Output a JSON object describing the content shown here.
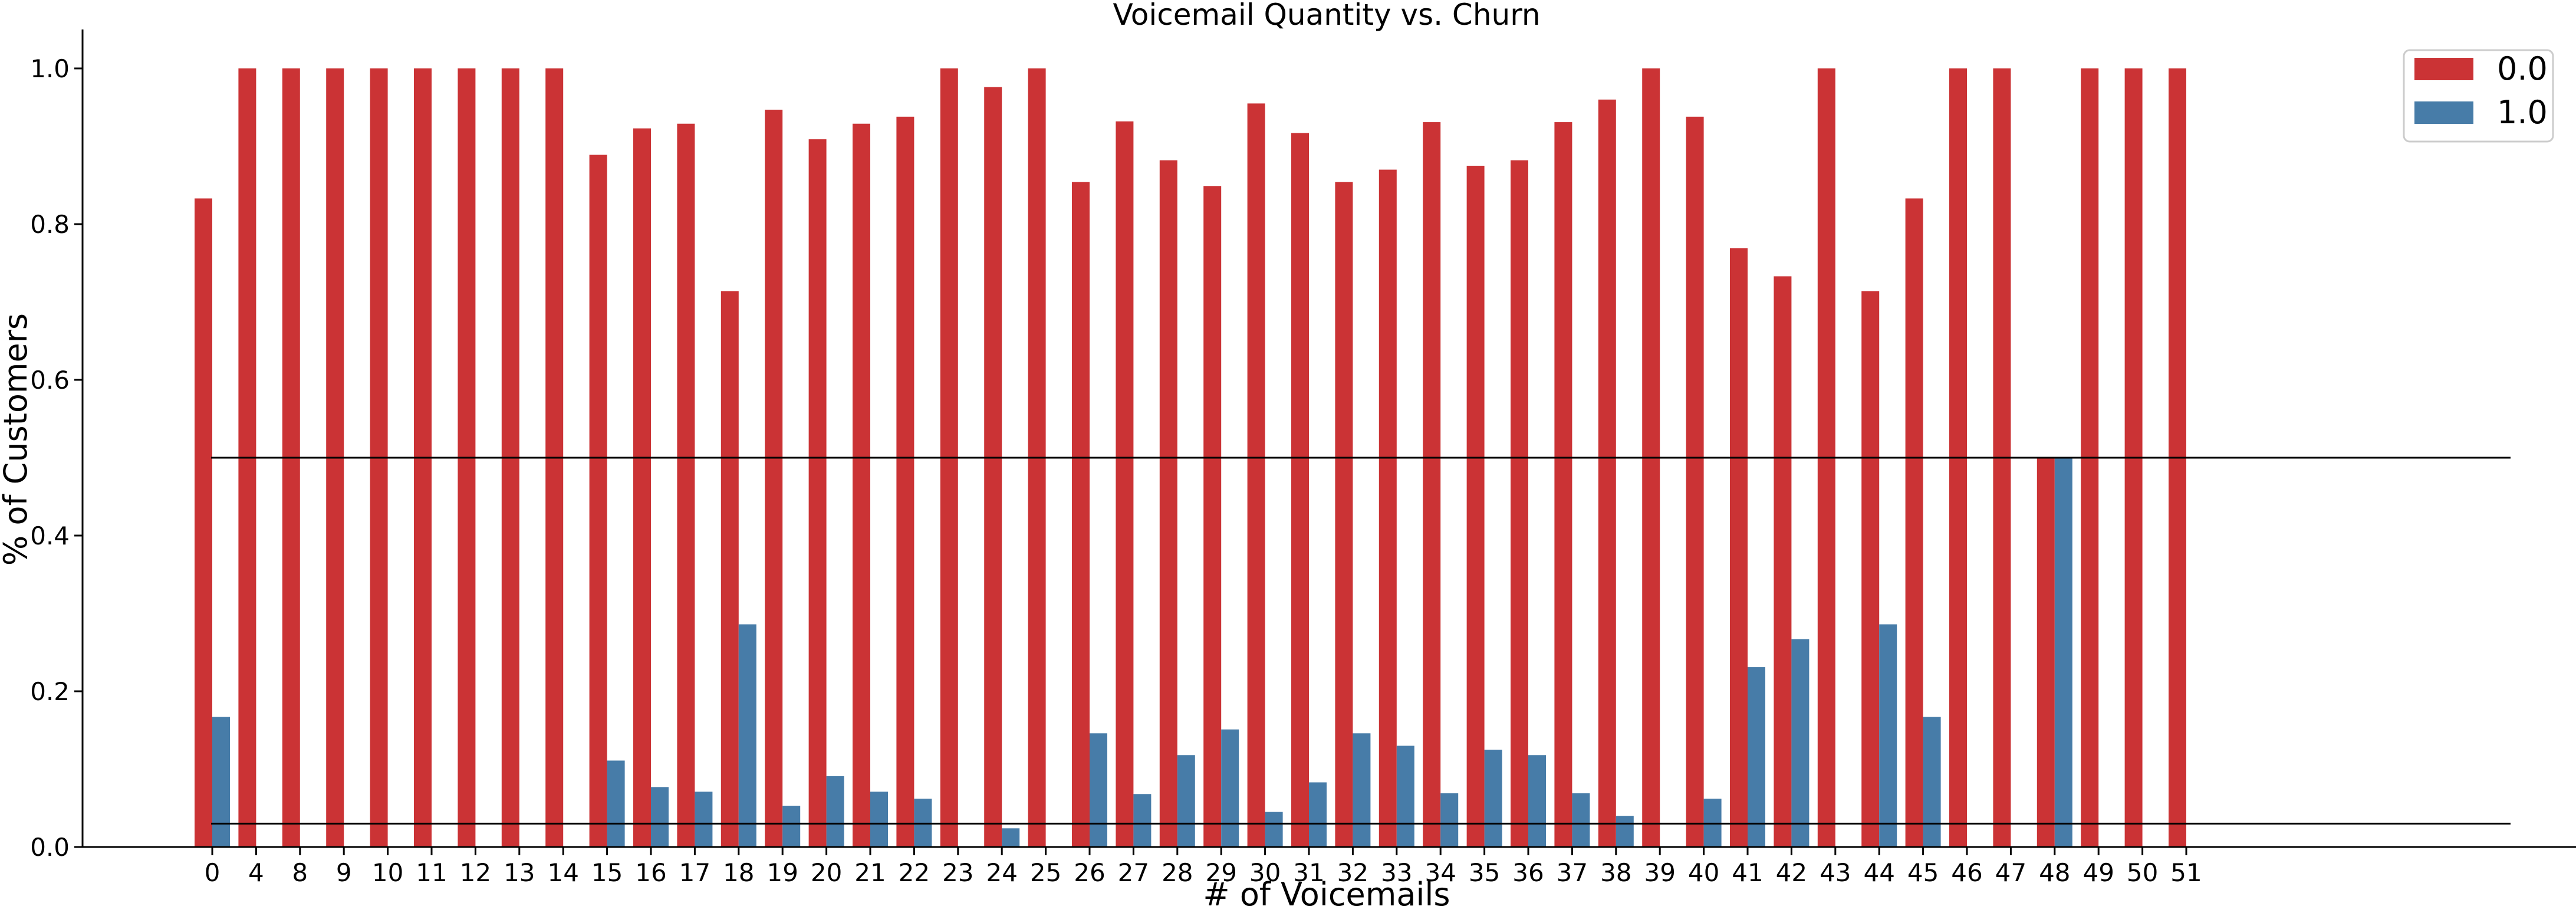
{
  "chart_data": {
    "type": "bar",
    "title": "Voicemail Quantity vs. Churn",
    "xlabel": "# of Voicemails",
    "ylabel": "% of Customers",
    "ylim": [
      0,
      1.05
    ],
    "yticks": [
      "0.0",
      "0.2",
      "0.4",
      "0.6",
      "0.8",
      "1.0"
    ],
    "grid": false,
    "legend_position": "top-right",
    "categories": [
      "0",
      "4",
      "8",
      "9",
      "10",
      "11",
      "12",
      "13",
      "14",
      "15",
      "16",
      "17",
      "18",
      "19",
      "20",
      "21",
      "22",
      "23",
      "24",
      "25",
      "26",
      "27",
      "28",
      "29",
      "30",
      "31",
      "32",
      "33",
      "34",
      "35",
      "36",
      "37",
      "38",
      "39",
      "40",
      "41",
      "42",
      "43",
      "44",
      "45",
      "46",
      "47",
      "48",
      "49",
      "50",
      "51"
    ],
    "series": [
      {
        "name": "0.0",
        "color": "#cb3335",
        "values": [
          0.833,
          1.0,
          1.0,
          1.0,
          1.0,
          1.0,
          1.0,
          1.0,
          1.0,
          0.889,
          0.923,
          0.929,
          0.714,
          0.947,
          0.909,
          0.929,
          0.938,
          1.0,
          0.976,
          1.0,
          0.854,
          0.932,
          0.882,
          0.849,
          0.955,
          0.917,
          0.854,
          0.87,
          0.931,
          0.875,
          0.882,
          0.931,
          0.96,
          1.0,
          0.938,
          0.769,
          0.733,
          1.0,
          0.714,
          0.833,
          1.0,
          1.0,
          0.5,
          1.0,
          1.0,
          1.0
        ]
      },
      {
        "name": "1.0",
        "color": "#477ca8",
        "values": [
          0.167,
          null,
          null,
          null,
          null,
          null,
          null,
          null,
          null,
          0.111,
          0.077,
          0.071,
          0.286,
          0.053,
          0.091,
          0.071,
          0.062,
          null,
          0.024,
          null,
          0.146,
          0.068,
          0.118,
          0.151,
          0.045,
          0.083,
          0.146,
          0.13,
          0.069,
          0.125,
          0.118,
          0.069,
          0.04,
          null,
          0.062,
          0.231,
          0.267,
          null,
          0.286,
          0.167,
          null,
          null,
          0.5,
          null,
          null,
          null
        ]
      }
    ],
    "reference_lines": [
      0.5,
      0.03
    ]
  }
}
